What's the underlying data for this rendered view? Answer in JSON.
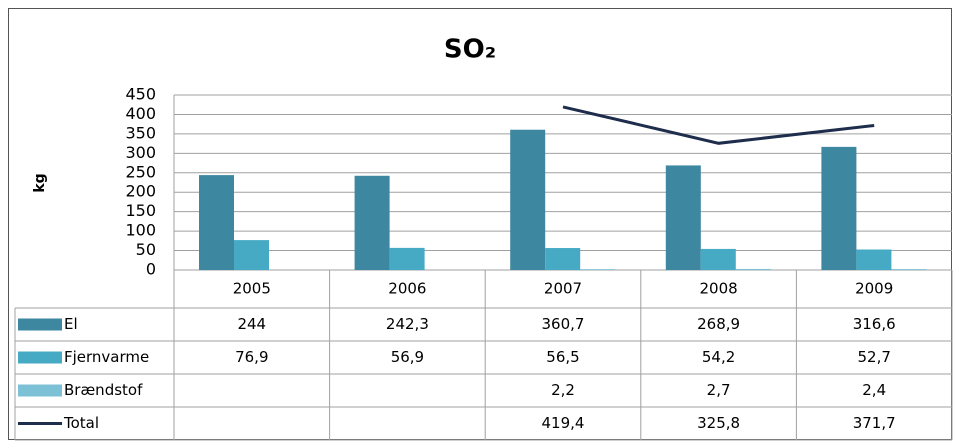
{
  "chart_data": {
    "type": "bar",
    "title": "SO₂",
    "y_label": "kg",
    "categories": [
      "2005",
      "2006",
      "2007",
      "2008",
      "2009"
    ],
    "ylim": [
      0,
      450
    ],
    "yticks": [
      0,
      50,
      100,
      150,
      200,
      250,
      300,
      350,
      400,
      450
    ],
    "grid": true,
    "series": [
      {
        "name": "El",
        "color": "#3d87a0",
        "values": [
          244,
          242.3,
          360.7,
          268.9,
          316.6
        ],
        "value_labels": [
          "244",
          "242,3",
          "360,7",
          "268,9",
          "316,6"
        ]
      },
      {
        "name": "Fjernvarme",
        "color": "#46aac4",
        "values": [
          76.9,
          56.9,
          56.5,
          54.2,
          52.7
        ],
        "value_labels": [
          "76,9",
          "56,9",
          "56,5",
          "54,2",
          "52,7"
        ]
      },
      {
        "name": "Brændstof",
        "color": "#7cc1d6",
        "values": [
          null,
          null,
          2.2,
          2.7,
          2.4
        ],
        "value_labels": [
          null,
          null,
          "2,2",
          "2,7",
          "2,4"
        ]
      },
      {
        "name": "Total",
        "type": "line",
        "color": "#1f2d4d",
        "values": [
          null,
          null,
          419.4,
          325.8,
          371.7
        ],
        "value_labels": [
          null,
          null,
          "419,4",
          "325,8",
          "371,7"
        ]
      }
    ]
  }
}
